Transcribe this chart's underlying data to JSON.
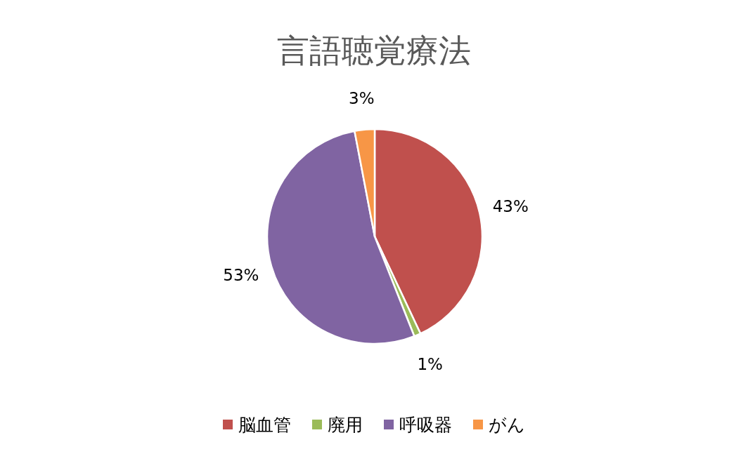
{
  "chart_data": {
    "type": "pie",
    "title": "言語聴覚療法",
    "categories": [
      "脳血管",
      "廃用",
      "呼吸器",
      "がん"
    ],
    "values": [
      43,
      1,
      53,
      3
    ],
    "colors": [
      "#c0504d",
      "#9bbb59",
      "#8064a2",
      "#f79646"
    ],
    "value_labels": [
      "43%",
      "1%",
      "53%",
      "3%"
    ],
    "legend": "bottom"
  }
}
